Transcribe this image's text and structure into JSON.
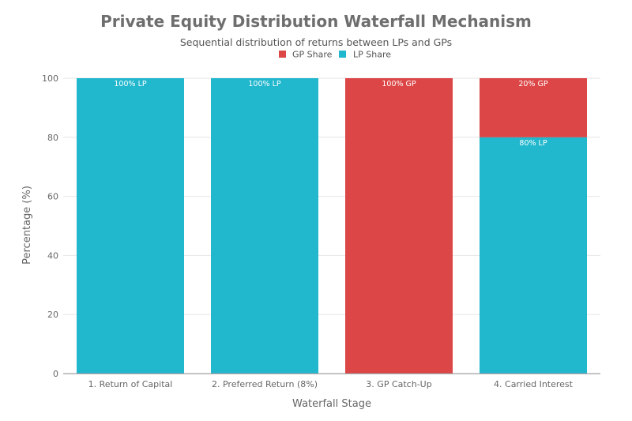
{
  "chart_data": {
    "type": "bar",
    "stacked": true,
    "title": "Private Equity Distribution Waterfall Mechanism",
    "subtitle": "Sequential distribution of returns between LPs and GPs",
    "xlabel": "Waterfall Stage",
    "ylabel": "Percentage (%)",
    "ylim": [
      0,
      100
    ],
    "yticks": [
      0,
      20,
      40,
      60,
      80,
      100
    ],
    "categories": [
      "1. Return of Capital",
      "2. Preferred Return (8%)",
      "3. GP Catch-Up",
      "4. Carried Interest"
    ],
    "series": [
      {
        "name": "LP Share",
        "color": "#21b7cd",
        "values": [
          100,
          100,
          0,
          80
        ],
        "labels": [
          "100% LP",
          "100% LP",
          "",
          "80% LP"
        ]
      },
      {
        "name": "GP Share",
        "color": "#dc4646",
        "values": [
          0,
          0,
          100,
          20
        ],
        "labels": [
          "",
          "",
          "100% GP",
          "20% GP"
        ]
      }
    ],
    "legend": [
      {
        "name": "GP Share",
        "color": "#dc4646"
      },
      {
        "name": "LP Share",
        "color": "#21b7cd"
      }
    ],
    "grid": true,
    "legend_position": "top-center"
  }
}
